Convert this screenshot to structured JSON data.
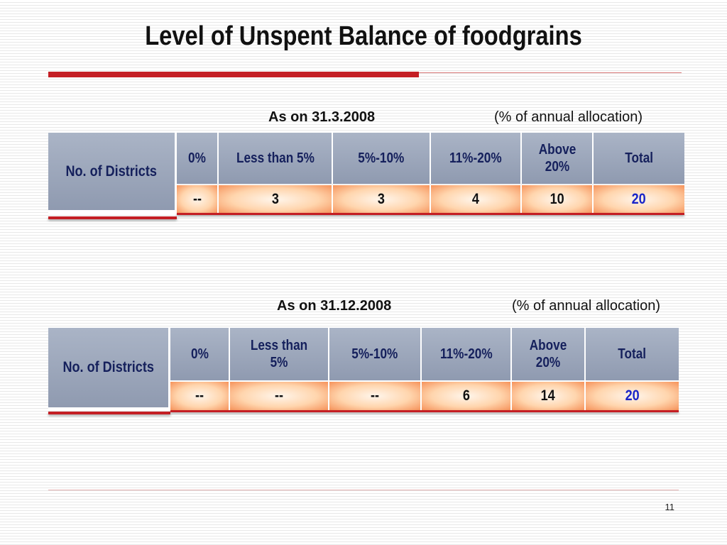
{
  "title": "Level of Unspent Balance of foodgrains",
  "page_number": "11",
  "tables": [
    {
      "date_label": "As on 31.3.2008",
      "unit_label": "(% of annual allocation)",
      "row_label": "No. of Districts",
      "headers": [
        "0%",
        "Less than 5%",
        "5%-10%",
        "11%-20%",
        "Above 20%",
        "Total"
      ],
      "values": [
        "--",
        "3",
        "3",
        "4",
        "10",
        "20"
      ]
    },
    {
      "date_label": "As on 31.12.2008",
      "unit_label": "(% of annual allocation)",
      "row_label": "No. of Districts",
      "headers": [
        "0%",
        "Less than 5%",
        "5%-10%",
        "11%-20%",
        "Above 20%",
        "Total"
      ],
      "values": [
        "--",
        "--",
        "--",
        "6",
        "14",
        "20"
      ]
    }
  ],
  "colors": {
    "accent_red": "#c41e24",
    "header_fill": "#9aa4b8",
    "header_text": "#15205c",
    "total_value_text": "#1a25c8"
  }
}
